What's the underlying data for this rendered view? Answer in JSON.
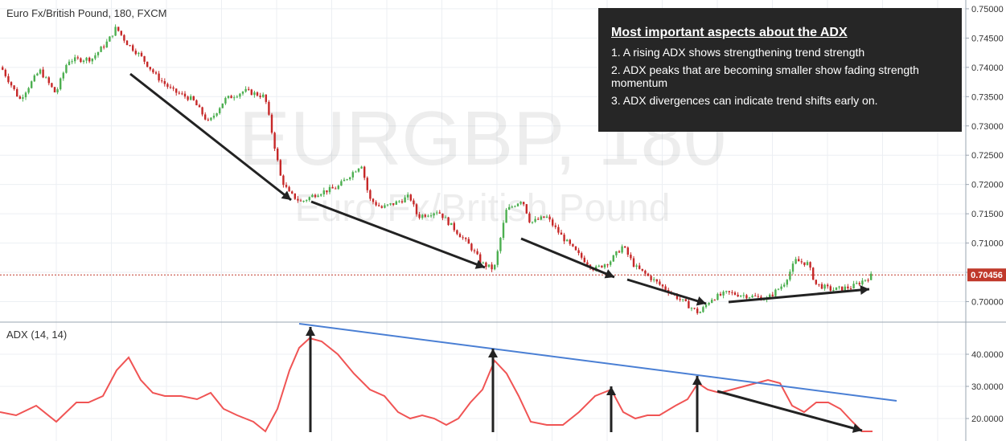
{
  "chart_title": "Euro Fx/British Pound, 180, FXCM",
  "watermark": {
    "symbol": "EURGBP, 180",
    "name": "Euro Fx/British Pound"
  },
  "last_price_label": "0.70456",
  "indicator_label": "ADX (14, 14)",
  "info_box": {
    "heading": "Most important aspects about the ADX",
    "points": [
      "1. A rising ADX shows strengthening trend strength",
      "2. ADX peaks that are becoming smaller show fading strength momentum",
      "3. ADX divergences can indicate trend shifts early on."
    ]
  },
  "colors": {
    "up_candle": "#4caf50",
    "down_candle": "#c62828",
    "adx_line": "#f05454",
    "trendline": "#4a7fd4",
    "annotation_arrow": "#222222",
    "last_price_badge": "#c0392b",
    "info_box_bg": "#262626"
  },
  "chart_data": [
    {
      "type": "candlestick",
      "price_axis": {
        "ticks": [
          "0.70000",
          "0.70500",
          "0.71000",
          "0.71500",
          "0.72000",
          "0.72500",
          "0.73000",
          "0.73500",
          "0.74000",
          "0.74500",
          "0.75000"
        ],
        "range": [
          0.6965,
          0.7515
        ]
      },
      "last_price": 0.70456,
      "path_points": [
        [
          0,
          0.7405
        ],
        [
          25,
          0.7345
        ],
        [
          50,
          0.7395
        ],
        [
          70,
          0.7355
        ],
        [
          85,
          0.7412
        ],
        [
          115,
          0.7415
        ],
        [
          135,
          0.7445
        ],
        [
          145,
          0.7468
        ],
        [
          158,
          0.7442
        ],
        [
          175,
          0.742
        ],
        [
          195,
          0.7385
        ],
        [
          215,
          0.736
        ],
        [
          240,
          0.7345
        ],
        [
          260,
          0.7305
        ],
        [
          280,
          0.7345
        ],
        [
          305,
          0.736
        ],
        [
          330,
          0.735
        ],
        [
          340,
          0.728
        ],
        [
          350,
          0.721
        ],
        [
          360,
          0.7185
        ],
        [
          375,
          0.717
        ],
        [
          395,
          0.7185
        ],
        [
          420,
          0.7195
        ],
        [
          450,
          0.7235
        ],
        [
          460,
          0.7175
        ],
        [
          475,
          0.716
        ],
        [
          495,
          0.717
        ],
        [
          510,
          0.718
        ],
        [
          520,
          0.7145
        ],
        [
          545,
          0.7155
        ],
        [
          565,
          0.7125
        ],
        [
          585,
          0.7095
        ],
        [
          600,
          0.7065
        ],
        [
          615,
          0.7055
        ],
        [
          630,
          0.7155
        ],
        [
          650,
          0.7175
        ],
        [
          660,
          0.7135
        ],
        [
          680,
          0.7145
        ],
        [
          700,
          0.711
        ],
        [
          720,
          0.708
        ],
        [
          740,
          0.7055
        ],
        [
          760,
          0.707
        ],
        [
          775,
          0.7095
        ],
        [
          790,
          0.706
        ],
        [
          810,
          0.704
        ],
        [
          830,
          0.702
        ],
        [
          850,
          0.7
        ],
        [
          870,
          0.698
        ],
        [
          885,
          0.7005
        ],
        [
          905,
          0.7015
        ],
        [
          930,
          0.701
        ],
        [
          955,
          0.7005
        ],
        [
          975,
          0.703
        ],
        [
          990,
          0.707
        ],
        [
          1005,
          0.7065
        ],
        [
          1015,
          0.703
        ],
        [
          1035,
          0.702
        ],
        [
          1060,
          0.7025
        ],
        [
          1085,
          0.7045
        ]
      ]
    },
    {
      "type": "line",
      "name": "ADX (14, 14)",
      "y_axis": {
        "ticks": [
          "20.0000",
          "30.0000",
          "40.0000"
        ],
        "range": [
          13,
          50
        ]
      },
      "x": [
        0,
        20,
        45,
        70,
        95,
        110,
        128,
        145,
        160,
        175,
        190,
        205,
        225,
        245,
        262,
        278,
        295,
        315,
        330,
        345,
        360,
        372,
        385,
        400,
        420,
        440,
        460,
        478,
        495,
        510,
        525,
        540,
        555,
        570,
        585,
        600,
        615,
        630,
        645,
        660,
        680,
        700,
        720,
        740,
        760,
        775,
        790,
        805,
        820,
        840,
        855,
        868,
        880,
        895,
        910,
        925,
        940,
        955,
        970,
        985,
        1000,
        1015,
        1030,
        1045,
        1060,
        1072,
        1085
      ],
      "values": [
        22,
        21,
        24,
        19,
        25,
        25,
        27,
        35,
        39,
        32,
        28,
        27,
        27,
        26,
        28,
        23,
        21,
        19,
        16,
        23,
        35,
        42,
        45,
        44,
        40,
        34,
        29,
        27,
        22,
        20,
        21,
        20,
        18,
        20,
        25,
        29,
        38,
        34,
        27,
        19,
        18,
        18,
        22,
        27,
        29,
        22,
        20,
        21,
        21,
        24,
        26,
        31,
        29,
        28,
        29,
        30,
        31,
        32,
        31,
        24,
        22,
        25,
        25,
        23,
        19,
        16,
        16
      ]
    }
  ]
}
